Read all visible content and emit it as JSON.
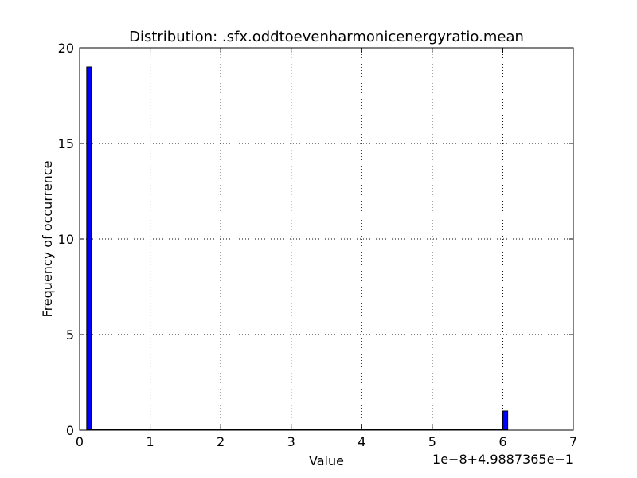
{
  "chart_data": {
    "type": "bar",
    "title": "Distribution: .sfx.oddtoevenharmonicenergyratio.mean",
    "xlabel": "Value",
    "ylabel": "Frequency of occurrence",
    "x_offset_label": "1e−8+4.9887365e−1",
    "xlim": [
      0,
      7
    ],
    "ylim": [
      0,
      20
    ],
    "xticks": [
      0,
      1,
      2,
      3,
      4,
      5,
      6,
      7
    ],
    "yticks": [
      0,
      5,
      10,
      15,
      20
    ],
    "grid": true,
    "bar_color": "#0000ff",
    "bin_width": 0.07,
    "bins": [
      {
        "x": 0.1,
        "count": 19
      },
      {
        "x": 6.0,
        "count": 1
      }
    ]
  }
}
